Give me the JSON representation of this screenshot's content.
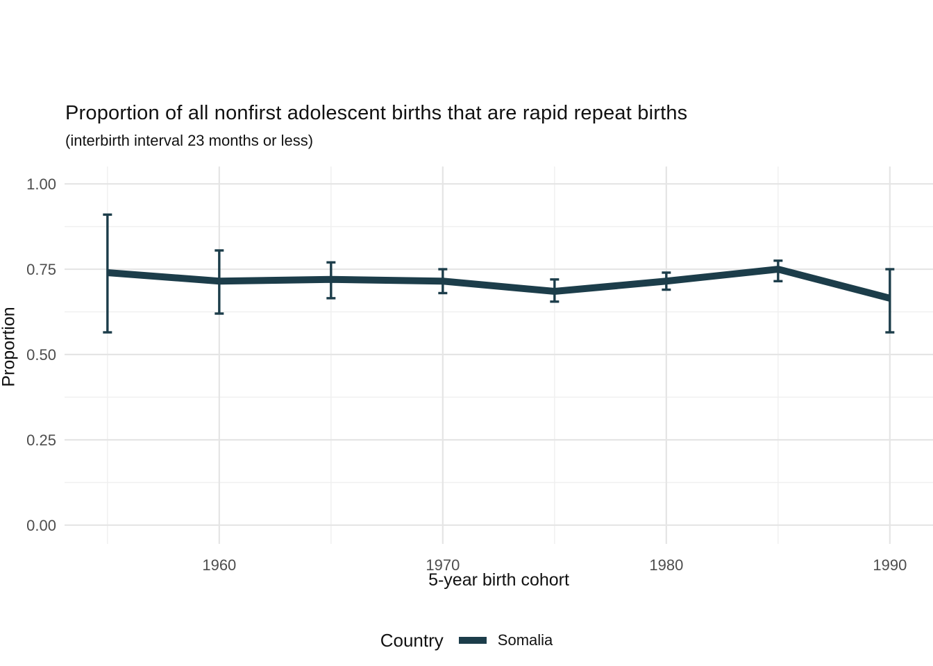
{
  "chart_data": {
    "type": "line",
    "title": "Proportion of all nonfirst adolescent births that are rapid repeat births",
    "subtitle": "(interbirth interval 23 months or less)",
    "xlabel": "5-year birth cohort",
    "ylabel": "Proportion",
    "legend_title": "Country",
    "legend_position": "bottom",
    "grid": true,
    "error_bars": true,
    "x": [
      1955,
      1960,
      1965,
      1970,
      1975,
      1980,
      1985,
      1990
    ],
    "series": [
      {
        "name": "Somalia",
        "color": "#1c3d4a",
        "values": [
          0.74,
          0.715,
          0.72,
          0.715,
          0.685,
          0.715,
          0.75,
          0.665
        ],
        "ci_low": [
          0.565,
          0.62,
          0.665,
          0.68,
          0.655,
          0.69,
          0.715,
          0.565
        ],
        "ci_high": [
          0.91,
          0.805,
          0.77,
          0.75,
          0.72,
          0.74,
          0.775,
          0.75
        ]
      }
    ],
    "x_ticks_major": [
      1960,
      1970,
      1980,
      1990
    ],
    "x_tick_labels": [
      "1960",
      "1970",
      "1980",
      "1990"
    ],
    "x_ticks_minor": [
      1955,
      1965,
      1975,
      1985
    ],
    "y_ticks": [
      0,
      0.25,
      0.5,
      0.75,
      1
    ],
    "y_tick_labels": [
      "0.00",
      "0.25",
      "0.50",
      "0.75",
      "1.00"
    ],
    "y_ticks_minor": [
      0.125,
      0.375,
      0.625,
      0.875
    ],
    "x_range": [
      1953.08,
      1991.93
    ],
    "y_range": [
      -0.055,
      1.051
    ]
  }
}
